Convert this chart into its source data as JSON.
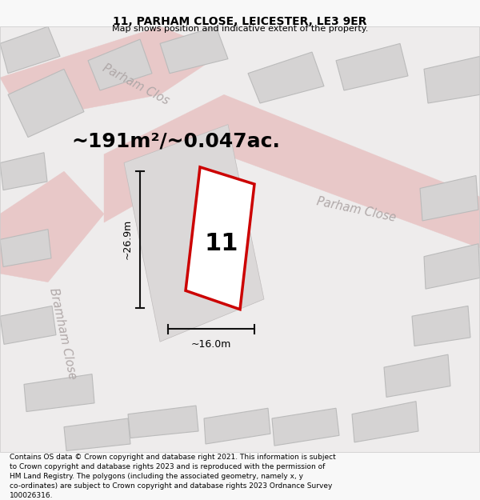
{
  "title_line1": "11, PARHAM CLOSE, LEICESTER, LE3 9ER",
  "title_line2": "Map shows position and indicative extent of the property.",
  "area_text": "~191m²/~0.047ac.",
  "label_number": "11",
  "dim_vertical": "~26.9m",
  "dim_horizontal": "~16.0m",
  "street_label_upper": "Parham Clos",
  "street_label_right": "Parham Close",
  "street_label_left": "Bramham Close",
  "footer_text": "Contains OS data © Crown copyright and database right 2021. This information is subject\nto Crown copyright and database rights 2023 and is reproduced with the permission of\nHM Land Registry. The polygons (including the associated geometry, namely x, y\nco-ordinates) are subject to Crown copyright and database rights 2023 Ordnance Survey\n100026316.",
  "bg_color": "#f8f8f8",
  "map_bg": "#eeecec",
  "building_fill": "#d5d3d3",
  "building_edge": "#bbbbbb",
  "road_fill": "#e8c8c8",
  "highlight_fill": "#ffffff",
  "highlight_edge": "#cc0000",
  "dim_line_color": "#111111",
  "street_text_color": "#b0a8a8",
  "title_fontsize": 10,
  "subtitle_fontsize": 8,
  "area_fontsize": 18,
  "label_fontsize": 22,
  "street_fontsize": 10.5,
  "footer_fontsize": 6.5,
  "dim_fontsize": 9
}
